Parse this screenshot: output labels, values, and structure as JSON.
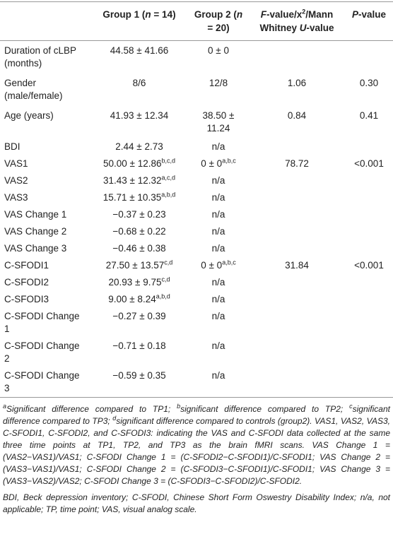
{
  "table": {
    "header": {
      "g1": [
        {
          "t": "Group 1 ("
        },
        {
          "i": "n"
        },
        {
          "t": " = 14)"
        }
      ],
      "g2": [
        {
          "t": "Group 2 ("
        },
        {
          "i": "n"
        },
        {
          "t": " = 20)"
        }
      ],
      "stat": [
        {
          "i": "F"
        },
        {
          "t": "-value/x"
        },
        {
          "sup": "2"
        },
        {
          "t": "/Mann Whitney "
        },
        {
          "i": "U"
        },
        {
          "t": "-value"
        }
      ],
      "p": [
        {
          "i": "P"
        },
        {
          "t": "-value"
        }
      ]
    },
    "rows": [
      {
        "label": "Duration of cLBP (months)",
        "g1": "44.58 ± 41.66",
        "g2": "0 ± 0"
      },
      {
        "label": "Gender (male/female)",
        "g1": "8/6",
        "g2": "12/8",
        "stat": "1.06",
        "p": "0.30"
      },
      {
        "label": "Age (years)",
        "g1": "41.93 ± 12.34",
        "g2": "38.50 ± 11.24",
        "stat": "0.84",
        "p": "0.41"
      },
      {
        "label": "BDI",
        "g1": "2.44 ± 2.73",
        "g2": "n/a"
      },
      {
        "label": "VAS1",
        "g1": [
          {
            "t": "50.00 ± 12.86"
          },
          {
            "sup": "b,c,d"
          }
        ],
        "g2": [
          {
            "t": "0 ± 0"
          },
          {
            "sup": "a,b,c"
          }
        ],
        "stat": "78.72",
        "p": "<0.001"
      },
      {
        "label": "VAS2",
        "g1": [
          {
            "t": "31.43 ± 12.32"
          },
          {
            "sup": "a,c,d"
          }
        ],
        "g2": "n/a"
      },
      {
        "label": "VAS3",
        "g1": [
          {
            "t": "15.71 ± 10.35"
          },
          {
            "sup": "a,b,d"
          }
        ],
        "g2": "n/a"
      },
      {
        "label": "VAS Change 1",
        "g1": "−0.37 ± 0.23",
        "g2": "n/a"
      },
      {
        "label": "VAS Change 2",
        "g1": "−0.68 ± 0.22",
        "g2": "n/a"
      },
      {
        "label": "VAS Change 3",
        "g1": "−0.46 ± 0.38",
        "g2": "n/a"
      },
      {
        "label": "C-SFODI1",
        "g1": [
          {
            "t": "27.50 ± 13.57"
          },
          {
            "sup": "c,d"
          }
        ],
        "g2": [
          {
            "t": "0 ± 0"
          },
          {
            "sup": "a,b,c"
          }
        ],
        "stat": "31.84",
        "p": "<0.001"
      },
      {
        "label": "C-SFODI2",
        "g1": [
          {
            "t": "20.93 ± 9.75"
          },
          {
            "sup": "c,d"
          }
        ],
        "g2": "n/a"
      },
      {
        "label": "C-SFODI3",
        "g1": [
          {
            "t": "9.00 ± 8.24"
          },
          {
            "sup": "a,b,d"
          }
        ],
        "g2": "n/a"
      },
      {
        "label": "C-SFODI Change 1",
        "g1": "−0.27 ± 0.39",
        "g2": "n/a"
      },
      {
        "label": "C-SFODI Change 2",
        "g1": "−0.71 ± 0.18",
        "g2": "n/a"
      },
      {
        "label": "C-SFODI Change 3",
        "g1": "−0.59 ± 0.35",
        "g2": "n/a"
      }
    ],
    "footnotes": [
      [
        {
          "sup": "a"
        },
        {
          "t": "Significant difference compared to TP1; "
        },
        {
          "sup": "b"
        },
        {
          "t": "significant difference compared to TP2; "
        },
        {
          "sup": "c"
        },
        {
          "t": "significant difference compared to TP3; "
        },
        {
          "sup": "d"
        },
        {
          "t": "significant difference compared to controls (group2). VAS1, VAS2, VAS3, C-SFODI1, C-SFODI2, and C-SFODI3: indicating the VAS and C-SFODI data collected at the same three time points at TP1, TP2, and TP3 as the brain fMRI scans. VAS Change 1 = (VAS2−VAS1)/VAS1; C-SFODI Change 1 = (C-SFODI2−C-SFODI1)/C-SFODI1; VAS Change 2 = (VAS3−VAS1)/VAS1; C-SFODI Change 2 = (C-SFODI3−C-SFODI1)/C-SFODI1; VAS Change 3 = (VAS3−VAS2)/VAS2; C-SFODI Change 3 = (C-SFODI3−C-SFODI2)/C-SFODI2."
        }
      ],
      "BDI, Beck depression inventory; C-SFODI, Chinese Short Form Oswestry Disability Index; n/a, not applicable; TP, time point; VAS, visual analog scale."
    ]
  }
}
